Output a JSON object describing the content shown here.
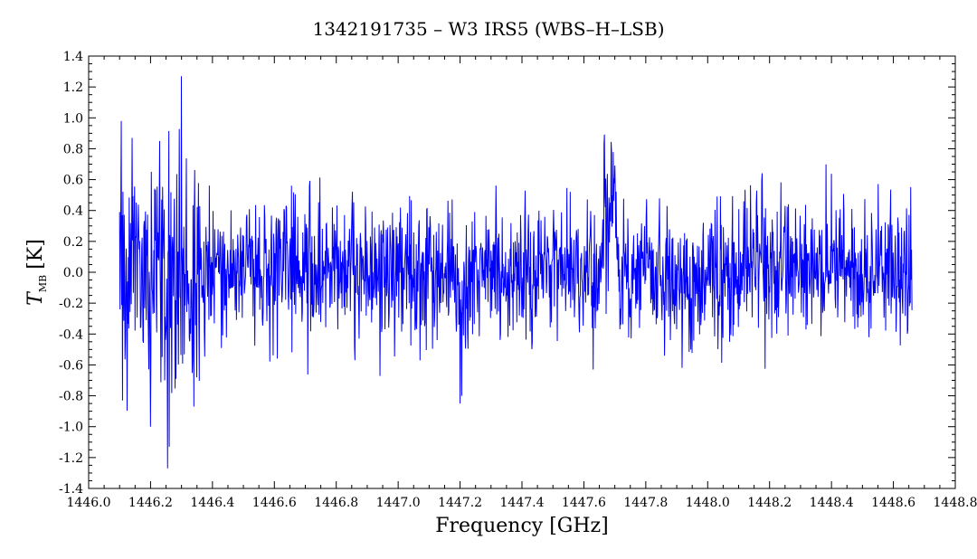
{
  "chart_data": {
    "type": "line",
    "title": "1342191735 – W3 IRS5 (WBS–H–LSB)",
    "xlabel": "Frequency [GHz]",
    "ylabel": {
      "symbol": "T",
      "subscript": "MB",
      "unit": "[K]"
    },
    "xlim": [
      1446.0,
      1448.8
    ],
    "ylim": [
      -1.4,
      1.4
    ],
    "x_ticks": [
      "1446.0",
      "1446.2",
      "1446.4",
      "1446.6",
      "1446.8",
      "1447.0",
      "1447.2",
      "1447.4",
      "1447.6",
      "1447.8",
      "1448.0",
      "1448.2",
      "1448.4",
      "1448.6",
      "1448.8"
    ],
    "y_ticks": [
      "-1.4",
      "-1.2",
      "-1.0",
      "-0.8",
      "-0.6",
      "-0.4",
      "-0.2",
      "0.0",
      "0.2",
      "0.4",
      "0.6",
      "0.8",
      "1.0",
      "1.2",
      "1.4"
    ],
    "grid": false,
    "series": [
      {
        "color": "#0000ff",
        "x_range": [
          1446.1,
          1448.66
        ],
        "base_noise": 0.22,
        "features": [
          {
            "x": 1446.105,
            "y": 0.98
          },
          {
            "x": 1446.11,
            "y": -0.83
          },
          {
            "x": 1446.14,
            "y": 0.87
          },
          {
            "x": 1446.23,
            "y": 0.85
          },
          {
            "x": 1446.245,
            "y": -0.7
          },
          {
            "x": 1446.255,
            "y": -1.27
          },
          {
            "x": 1446.26,
            "y": -1.13
          },
          {
            "x": 1446.3,
            "y": 1.27
          },
          {
            "x": 1446.34,
            "y": -0.87
          },
          {
            "x": 1447.2,
            "y": -0.85
          },
          {
            "x": 1447.205,
            "y": -0.8
          },
          {
            "x": 1447.63,
            "y": -0.63
          },
          {
            "x": 1447.665,
            "y": 0.83
          },
          {
            "x": 1447.69,
            "y": 0.78
          }
        ],
        "bumps": [
          {
            "from": 1447.66,
            "to": 1447.71,
            "offset": 0.35
          },
          {
            "from": 1447.18,
            "to": 1447.22,
            "offset": -0.25
          }
        ],
        "regions": [
          {
            "from": 1446.1,
            "to": 1446.36,
            "noise": 0.38
          }
        ]
      }
    ]
  }
}
